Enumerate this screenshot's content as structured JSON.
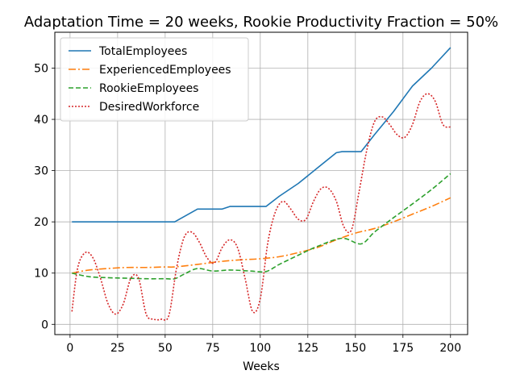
{
  "chart_data": {
    "type": "line",
    "title": "Adaptation Time = 20 weeks, Rookie Productivity Fraction = 50%",
    "xlabel": "Weeks",
    "ylabel": "",
    "xlim": [
      -8,
      209
    ],
    "ylim": [
      -2,
      57
    ],
    "xticks": [
      0,
      25,
      50,
      75,
      100,
      125,
      150,
      175,
      200
    ],
    "yticks": [
      0,
      10,
      20,
      30,
      40,
      50
    ],
    "grid": true,
    "legend_position": "top-left",
    "series": [
      {
        "name": "TotalEmployees",
        "color": "#1f77b4",
        "style": "solid",
        "x": [
          1,
          55,
          67,
          80,
          84,
          103,
          110,
          120,
          130,
          140,
          143,
          153,
          160,
          170,
          180,
          190,
          200
        ],
        "y": [
          20,
          20,
          22.5,
          22.5,
          23,
          23,
          25,
          27.5,
          30.5,
          33.5,
          33.7,
          33.7,
          37,
          41.5,
          46.5,
          50,
          54
        ]
      },
      {
        "name": "ExperiencedEmployees",
        "color": "#ff7f0e",
        "style": "dashdot",
        "x": [
          1,
          10,
          20,
          30,
          40,
          50,
          55,
          67,
          80,
          90,
          100,
          110,
          120,
          130,
          140,
          150,
          160,
          170,
          180,
          190,
          200
        ],
        "y": [
          10,
          10.6,
          10.9,
          11.1,
          11.1,
          11.2,
          11.2,
          11.7,
          12.3,
          12.6,
          12.8,
          13.2,
          14,
          15,
          16.5,
          17.8,
          18.7,
          20,
          21.5,
          23,
          24.7
        ]
      },
      {
        "name": "RookieEmployees",
        "color": "#2ca02c",
        "style": "dashed",
        "x": [
          1,
          10,
          20,
          30,
          40,
          50,
          55,
          60,
          67,
          75,
          84,
          95,
          103,
          110,
          120,
          130,
          143,
          153,
          160,
          170,
          180,
          190,
          200
        ],
        "y": [
          10,
          9.3,
          9.1,
          9,
          8.9,
          8.9,
          8.9,
          9.8,
          10.9,
          10.4,
          10.6,
          10.4,
          10.3,
          11.7,
          13.5,
          15.2,
          16.8,
          15.7,
          18,
          20.8,
          23.5,
          26.3,
          29.4
        ]
      },
      {
        "name": "DesiredWorkforce",
        "color": "#d62728",
        "style": "dotted",
        "x": [
          1,
          4,
          8,
          12,
          16,
          20,
          24,
          28,
          32,
          36,
          40,
          44,
          48,
          52,
          56,
          60,
          64,
          68,
          72,
          76,
          80,
          84,
          88,
          92,
          96,
          100,
          104,
          108,
          112,
          116,
          120,
          124,
          128,
          132,
          136,
          140,
          144,
          148,
          152,
          156,
          160,
          164,
          168,
          172,
          176,
          180,
          184,
          188,
          192,
          196,
          200
        ],
        "y": [
          2.5,
          11,
          14,
          13,
          9,
          4,
          2,
          4,
          9,
          9,
          2,
          1,
          1,
          1.8,
          11,
          17,
          18,
          16,
          13,
          12,
          15,
          16.5,
          15,
          9,
          2.5,
          5,
          16,
          22,
          24,
          22.5,
          20.5,
          20.5,
          24,
          26.5,
          26.5,
          24,
          19,
          18.5,
          26,
          34,
          39.5,
          40.5,
          39,
          37,
          36.5,
          39,
          43.5,
          45,
          43.5,
          39,
          38.5
        ]
      }
    ]
  }
}
